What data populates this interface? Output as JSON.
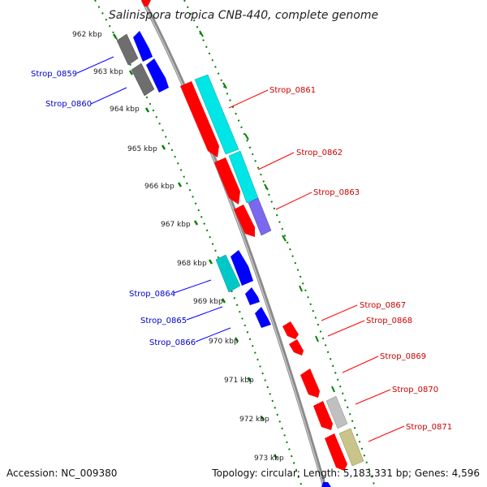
{
  "title": "Salinispora tropica CNB-440, complete genome",
  "footer": {
    "accession": "Accession: NC_009380",
    "summary": "Topology: circular; Length: 5,183,331 bp; Genes: 4,596"
  },
  "kbp_ticks": [
    "962 kbp",
    "963 kbp",
    "964 kbp",
    "965 kbp",
    "966 kbp",
    "967 kbp",
    "968 kbp",
    "969 kbp",
    "970 kbp",
    "971 kbp",
    "972 kbp",
    "973 kbp"
  ],
  "genes_reverse": [
    "Strop_0859",
    "Strop_0860",
    "Strop_0864",
    "Strop_0865",
    "Strop_0866"
  ],
  "genes_forward": [
    "Strop_0861",
    "Strop_0862",
    "Strop_0863",
    "Strop_0867",
    "Strop_0868",
    "Strop_0869",
    "Strop_0870",
    "Strop_0871"
  ],
  "colors": {
    "forward_cds": "#ff0000",
    "reverse_cds": "#0000ff",
    "cyan_feature": "#00e6e6",
    "gray_feature": "#707070",
    "purple_feature": "#7b68ee",
    "light_gray_feature": "#c0c0c0",
    "khaki_feature": "#c8c48a",
    "dotted_ring": "#008000",
    "backbone": "#808080"
  }
}
